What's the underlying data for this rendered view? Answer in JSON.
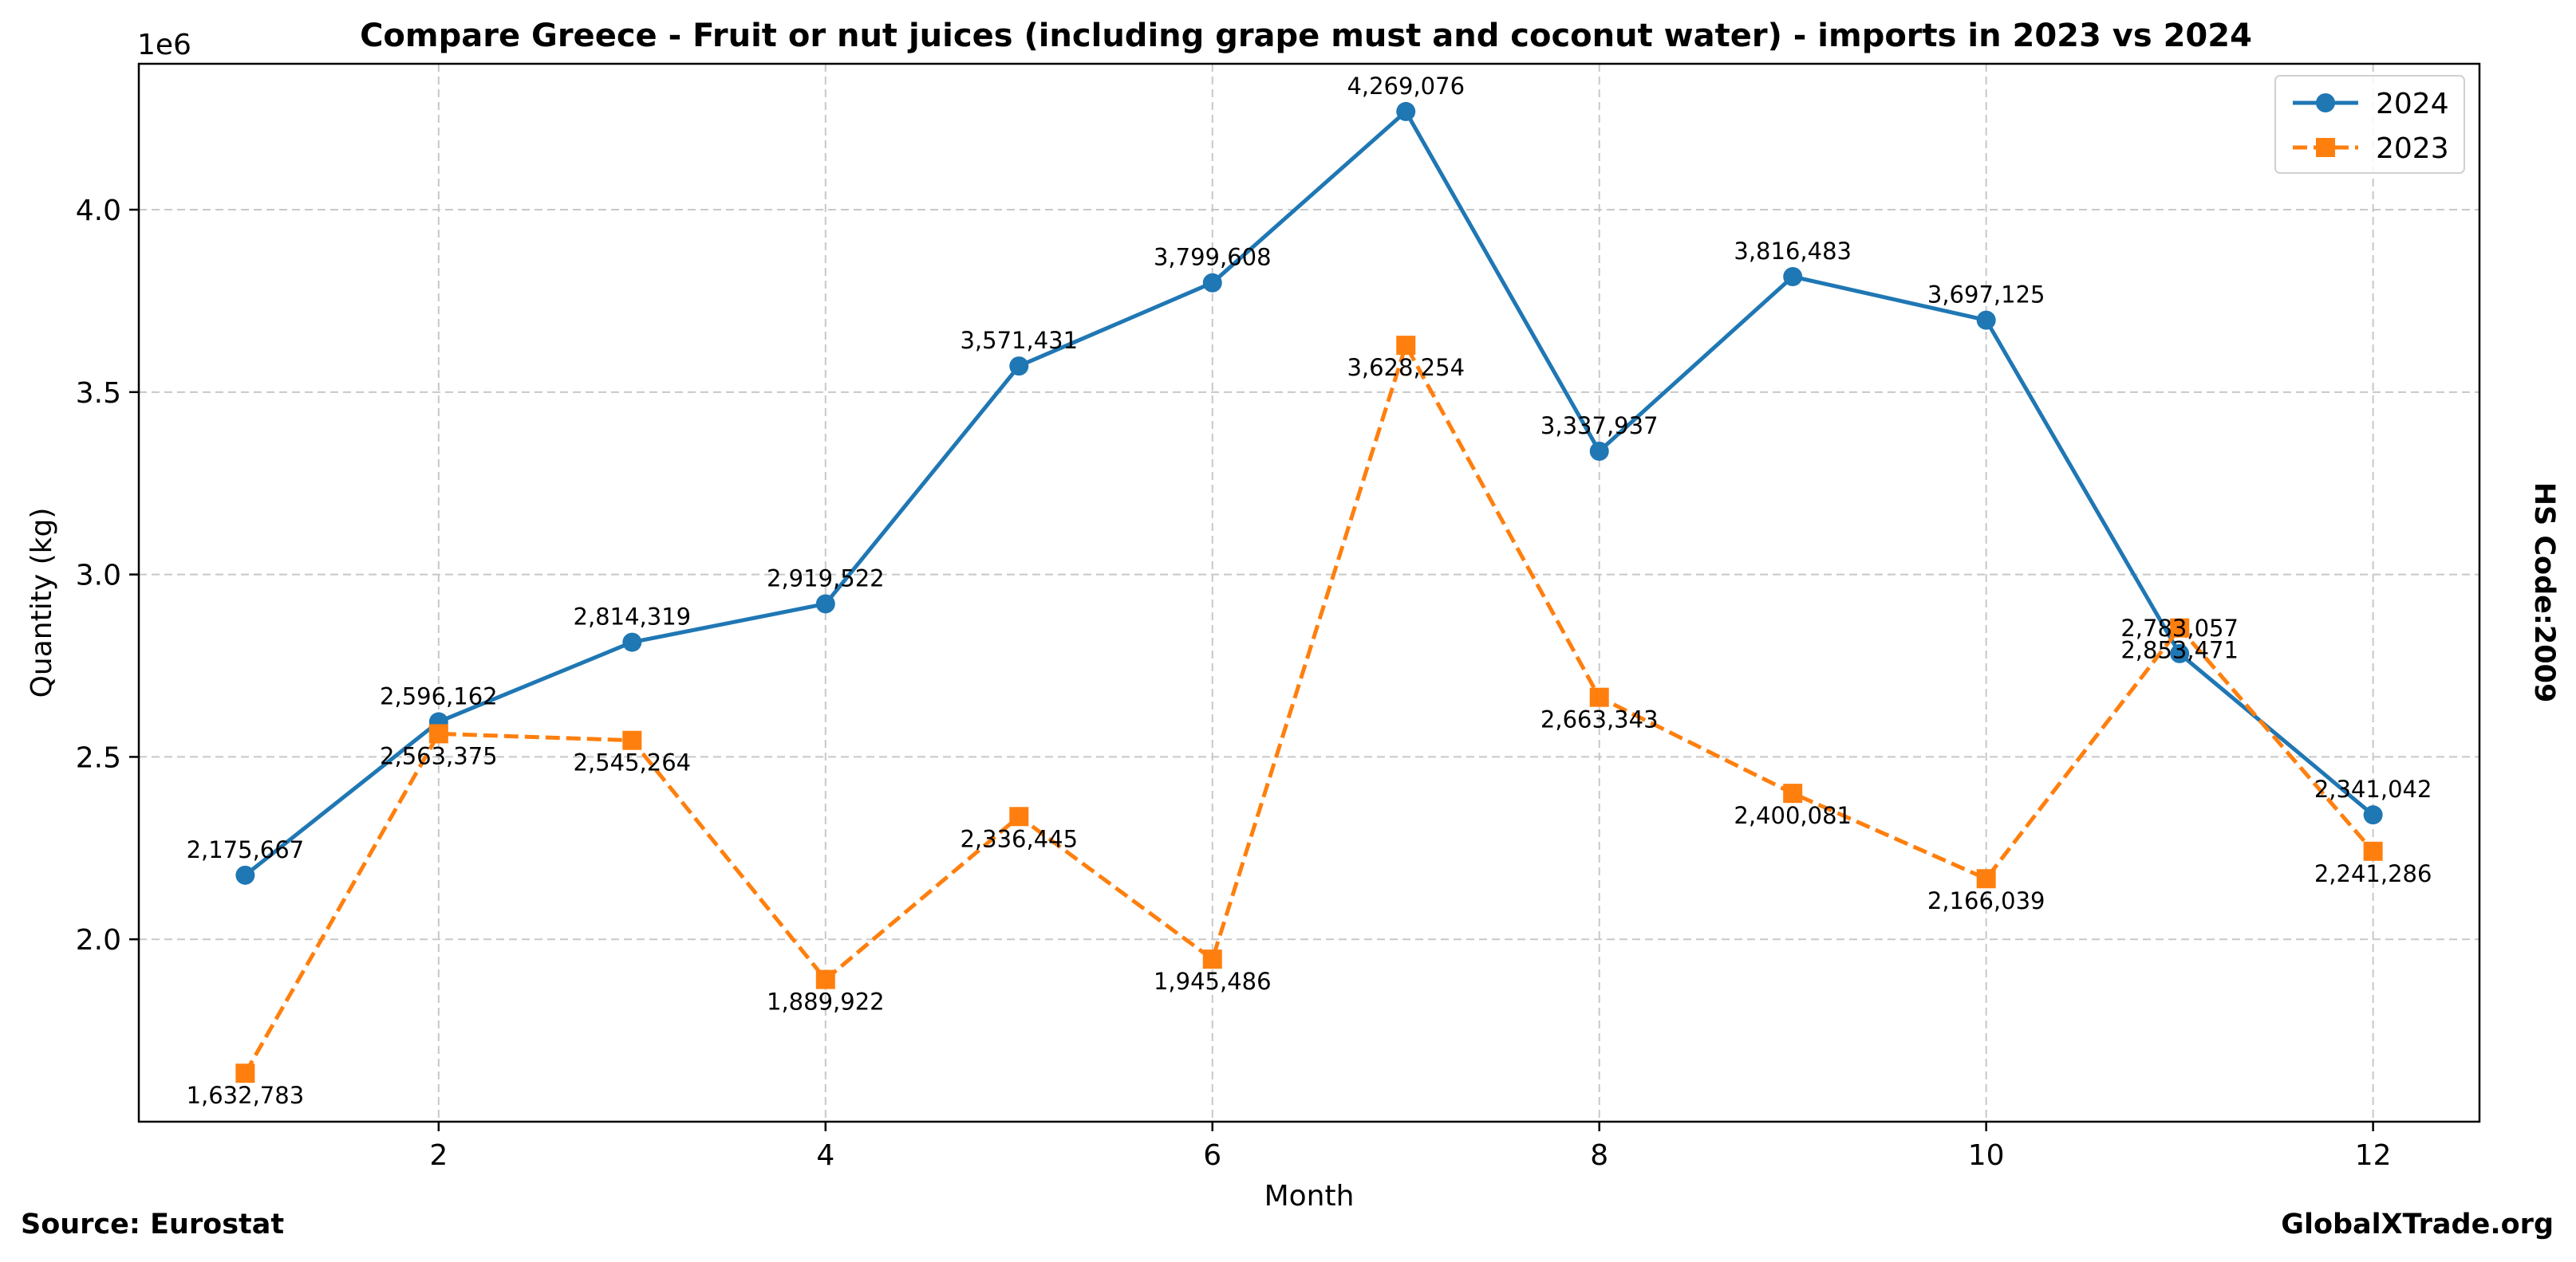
{
  "chart_data": {
    "type": "line",
    "title": "Compare Greece - Fruit or nut juices (including grape must and coconut water) - imports in 2023 vs 2024",
    "xlabel": "Month",
    "ylabel": "Quantity (kg)",
    "y_offset_label": "1e6",
    "x": [
      1,
      2,
      3,
      4,
      5,
      6,
      7,
      8,
      9,
      10,
      11,
      12
    ],
    "xlim": [
      0.45,
      12.55
    ],
    "ylim": [
      1.5,
      4.4
    ],
    "x_ticks": [
      2,
      4,
      6,
      8,
      10,
      12
    ],
    "x_tick_labels": [
      "2",
      "4",
      "6",
      "8",
      "10",
      "12"
    ],
    "y_ticks": [
      2.0,
      2.5,
      3.0,
      3.5,
      4.0
    ],
    "y_tick_labels": [
      "2.0",
      "2.5",
      "3.0",
      "3.5",
      "4.0"
    ],
    "grid": true,
    "legend_position": "top-right",
    "series": [
      {
        "name": "2024",
        "color": "#1f77b4",
        "marker": "circle",
        "line_style": "solid",
        "values": [
          2175667,
          2596162,
          2814319,
          2919522,
          3571431,
          3799608,
          4269076,
          3337937,
          3816483,
          3697125,
          2783057,
          2341042
        ],
        "labels": [
          "2,175,667",
          "2,596,162",
          "2,814,319",
          "2,919,522",
          "3,571,431",
          "3,799,608",
          "4,269,076",
          "3,337,937",
          "3,816,483",
          "3,697,125",
          "2,783,057",
          "2,341,042"
        ]
      },
      {
        "name": "2023",
        "color": "#ff7f0e",
        "marker": "square",
        "line_style": "dashed",
        "values": [
          1632783,
          2563375,
          2545264,
          1889922,
          2336445,
          1945486,
          3628254,
          2663343,
          2400081,
          2166039,
          2853471,
          2241286
        ],
        "labels": [
          "1,632,783",
          "2,563,375",
          "2,545,264",
          "1,889,922",
          "2,336,445",
          "1,945,486",
          "3,628,254",
          "2,663,343",
          "2,400,081",
          "2,166,039",
          "2,853,471",
          "2,241,286"
        ]
      }
    ]
  },
  "footer": {
    "source": "Source: Eurostat",
    "brand": "GlobalXTrade.org",
    "hs_code": "HS Code:2009"
  }
}
